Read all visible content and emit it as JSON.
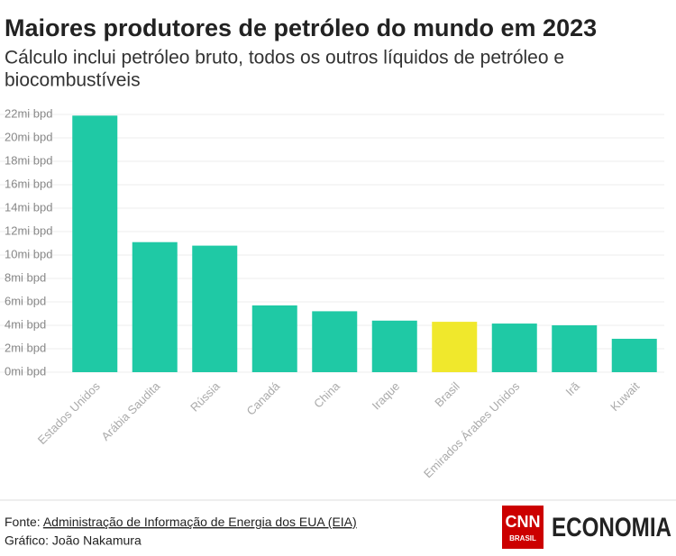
{
  "chart_data": {
    "type": "bar",
    "title": "Maiores produtores de petróleo do mundo em 2023",
    "subtitle": [
      "Cálculo inclui petróleo bruto, todos os outros líquidos de petróleo e",
      "biocombustíveis"
    ],
    "categories": [
      "Estados Unidos",
      "Arábia Saudita",
      "Rússia",
      "Canadá",
      "China",
      "Iraque",
      "Brasil",
      "Emirados Árabes Unidos",
      "Irã",
      "Kuwait"
    ],
    "values": [
      21.9,
      11.1,
      10.8,
      5.7,
      5.2,
      4.4,
      4.3,
      4.15,
      4.0,
      2.85
    ],
    "colors": [
      "#1fc9a5",
      "#1fc9a5",
      "#1fc9a5",
      "#1fc9a5",
      "#1fc9a5",
      "#1fc9a5",
      "#f0e82c",
      "#1fc9a5",
      "#1fc9a5",
      "#1fc9a5"
    ],
    "ylim": [
      0,
      22
    ],
    "yticks": [
      {
        "value": 0,
        "label": "0mi bpd"
      },
      {
        "value": 2,
        "label": "2mi bpd"
      },
      {
        "value": 4,
        "label": "4mi bpd"
      },
      {
        "value": 6,
        "label": "6mi bpd"
      },
      {
        "value": 8,
        "label": "8mi bpd"
      },
      {
        "value": 10,
        "label": "10mi bpd"
      },
      {
        "value": 12,
        "label": "12mi bpd"
      },
      {
        "value": 14,
        "label": "14mi bpd"
      },
      {
        "value": 16,
        "label": "16mi bpd"
      },
      {
        "value": 18,
        "label": "18mi bpd"
      },
      {
        "value": 20,
        "label": "20mi bpd"
      },
      {
        "value": 22,
        "label": "22mi bpd"
      }
    ],
    "grid": true,
    "source_label": "Fonte:",
    "source": "Administração de Informação de Energia dos EUA (EIA)",
    "credit": "Gráfico: João Nakamura",
    "logo": {
      "cnn": "CNN",
      "brasil": "BRASIL",
      "section": "ECONOMIA"
    }
  }
}
